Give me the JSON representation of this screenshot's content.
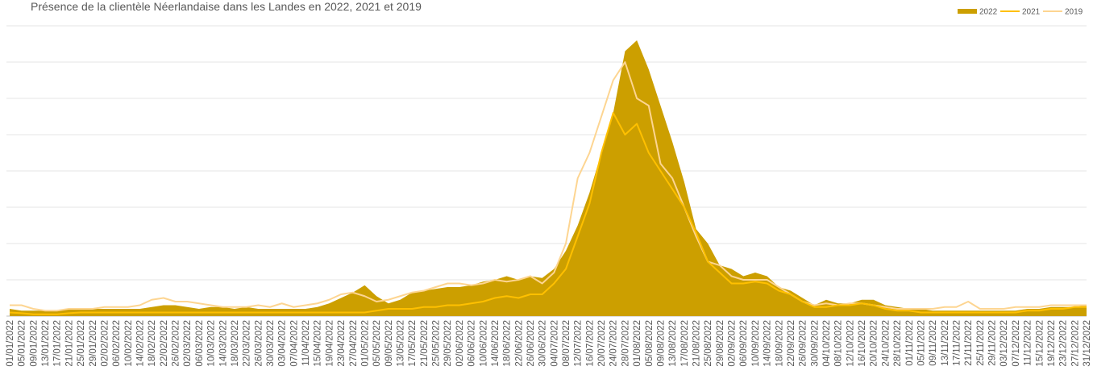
{
  "chart_data": {
    "type": "line",
    "title": "Présence de la clientèle Néerlandaise dans les Landes en 2022, 2021 et 2019",
    "categories": [
      "01/01/2022",
      "05/01/2022",
      "09/01/2022",
      "13/01/2022",
      "17/01/2022",
      "21/01/2022",
      "25/01/2022",
      "29/01/2022",
      "02/02/2022",
      "06/02/2022",
      "10/02/2022",
      "14/02/2022",
      "18/02/2022",
      "22/02/2022",
      "26/02/2022",
      "02/03/2022",
      "06/03/2022",
      "10/03/2022",
      "14/03/2022",
      "18/03/2022",
      "22/03/2022",
      "26/03/2022",
      "30/03/2022",
      "03/04/2022",
      "07/04/2022",
      "11/04/2022",
      "15/04/2022",
      "19/04/2022",
      "23/04/2022",
      "27/04/2022",
      "01/05/2022",
      "05/05/2022",
      "09/05/2022",
      "13/05/2022",
      "17/05/2022",
      "21/05/2022",
      "25/05/2022",
      "29/05/2022",
      "02/06/2022",
      "06/06/2022",
      "10/06/2022",
      "14/06/2022",
      "18/06/2022",
      "22/06/2022",
      "26/06/2022",
      "30/06/2022",
      "04/07/2022",
      "08/07/2022",
      "12/07/2022",
      "16/07/2022",
      "20/07/2022",
      "24/07/2022",
      "28/07/2022",
      "01/08/2022",
      "05/08/2022",
      "09/08/2022",
      "13/08/2022",
      "17/08/2022",
      "21/08/2022",
      "25/08/2022",
      "29/08/2022",
      "02/09/2022",
      "06/09/2022",
      "10/09/2022",
      "14/09/2022",
      "18/09/2022",
      "22/09/2022",
      "26/09/2022",
      "30/09/2022",
      "04/10/2022",
      "08/10/2022",
      "12/10/2022",
      "16/10/2022",
      "20/10/2022",
      "24/10/2022",
      "28/10/2022",
      "01/11/2022",
      "05/11/2022",
      "09/11/2022",
      "13/11/2022",
      "17/11/2022",
      "21/11/2022",
      "25/11/2022",
      "29/11/2022",
      "03/12/2022",
      "07/12/2022",
      "11/12/2022",
      "15/12/2022",
      "19/12/2022",
      "23/12/2022",
      "27/12/2022",
      "31/12/2022"
    ],
    "series": [
      {
        "name": "2022",
        "style": "area",
        "color": "#cc9f00",
        "values": [
          0.2,
          0.15,
          0.15,
          0.15,
          0.15,
          0.2,
          0.2,
          0.2,
          0.2,
          0.2,
          0.2,
          0.2,
          0.25,
          0.3,
          0.3,
          0.25,
          0.2,
          0.25,
          0.25,
          0.2,
          0.25,
          0.2,
          0.2,
          0.2,
          0.2,
          0.2,
          0.25,
          0.35,
          0.5,
          0.65,
          0.85,
          0.55,
          0.35,
          0.45,
          0.65,
          0.7,
          0.75,
          0.8,
          0.8,
          0.85,
          0.95,
          1.0,
          1.1,
          1.0,
          1.1,
          1.05,
          1.3,
          1.8,
          2.5,
          3.4,
          4.5,
          5.6,
          7.3,
          7.6,
          6.8,
          5.8,
          4.8,
          3.7,
          2.4,
          2.0,
          1.4,
          1.3,
          1.1,
          1.2,
          1.1,
          0.8,
          0.7,
          0.5,
          0.3,
          0.45,
          0.35,
          0.35,
          0.45,
          0.45,
          0.3,
          0.25,
          0.2,
          0.2,
          0.15,
          0.15,
          0.15,
          0.15,
          0.15,
          0.15,
          0.15,
          0.15,
          0.2,
          0.2,
          0.25,
          0.25,
          0.25,
          0.3
        ]
      },
      {
        "name": "2021",
        "style": "line",
        "color": "#ffc000",
        "values": [
          0.1,
          0.08,
          0.05,
          0.05,
          0.05,
          0.08,
          0.1,
          0.1,
          0.1,
          0.1,
          0.1,
          0.1,
          0.1,
          0.1,
          0.1,
          0.1,
          0.1,
          0.1,
          0.1,
          0.1,
          0.1,
          0.1,
          0.1,
          0.1,
          0.1,
          0.1,
          0.1,
          0.1,
          0.1,
          0.1,
          0.1,
          0.15,
          0.2,
          0.2,
          0.2,
          0.25,
          0.25,
          0.3,
          0.3,
          0.35,
          0.4,
          0.5,
          0.55,
          0.5,
          0.6,
          0.6,
          0.9,
          1.3,
          2.2,
          3.1,
          4.5,
          5.6,
          5.0,
          5.3,
          4.5,
          4.0,
          3.5,
          3.0,
          2.3,
          1.5,
          1.2,
          0.9,
          0.9,
          0.95,
          0.9,
          0.7,
          0.6,
          0.4,
          0.25,
          0.25,
          0.3,
          0.3,
          0.35,
          0.3,
          0.2,
          0.15,
          0.15,
          0.1,
          0.1,
          0.1,
          0.1,
          0.1,
          0.1,
          0.1,
          0.1,
          0.1,
          0.15,
          0.15,
          0.2,
          0.2,
          0.25,
          0.25
        ]
      },
      {
        "name": "2019",
        "style": "line",
        "color": "#fdd591",
        "values": [
          0.3,
          0.3,
          0.2,
          0.15,
          0.15,
          0.2,
          0.2,
          0.2,
          0.25,
          0.25,
          0.25,
          0.3,
          0.45,
          0.5,
          0.4,
          0.4,
          0.35,
          0.3,
          0.25,
          0.25,
          0.25,
          0.3,
          0.25,
          0.35,
          0.25,
          0.3,
          0.35,
          0.45,
          0.6,
          0.65,
          0.55,
          0.4,
          0.45,
          0.55,
          0.65,
          0.7,
          0.8,
          0.9,
          0.9,
          0.85,
          0.9,
          1.0,
          0.95,
          1.0,
          1.1,
          0.9,
          1.2,
          2.0,
          3.8,
          4.5,
          5.5,
          6.5,
          7.0,
          6.0,
          5.8,
          4.2,
          3.8,
          3.0,
          2.2,
          1.5,
          1.4,
          1.1,
          1.0,
          1.0,
          1.0,
          0.8,
          0.6,
          0.4,
          0.3,
          0.35,
          0.3,
          0.35,
          0.35,
          0.3,
          0.25,
          0.2,
          0.2,
          0.2,
          0.2,
          0.25,
          0.25,
          0.4,
          0.2,
          0.2,
          0.2,
          0.25,
          0.25,
          0.25,
          0.3,
          0.3,
          0.3,
          0.3
        ]
      }
    ],
    "ylim": [
      0,
      8
    ],
    "yticks": [
      0,
      1,
      2,
      3,
      4,
      5,
      6,
      7,
      8
    ],
    "grid": true,
    "legend": "top-right"
  }
}
